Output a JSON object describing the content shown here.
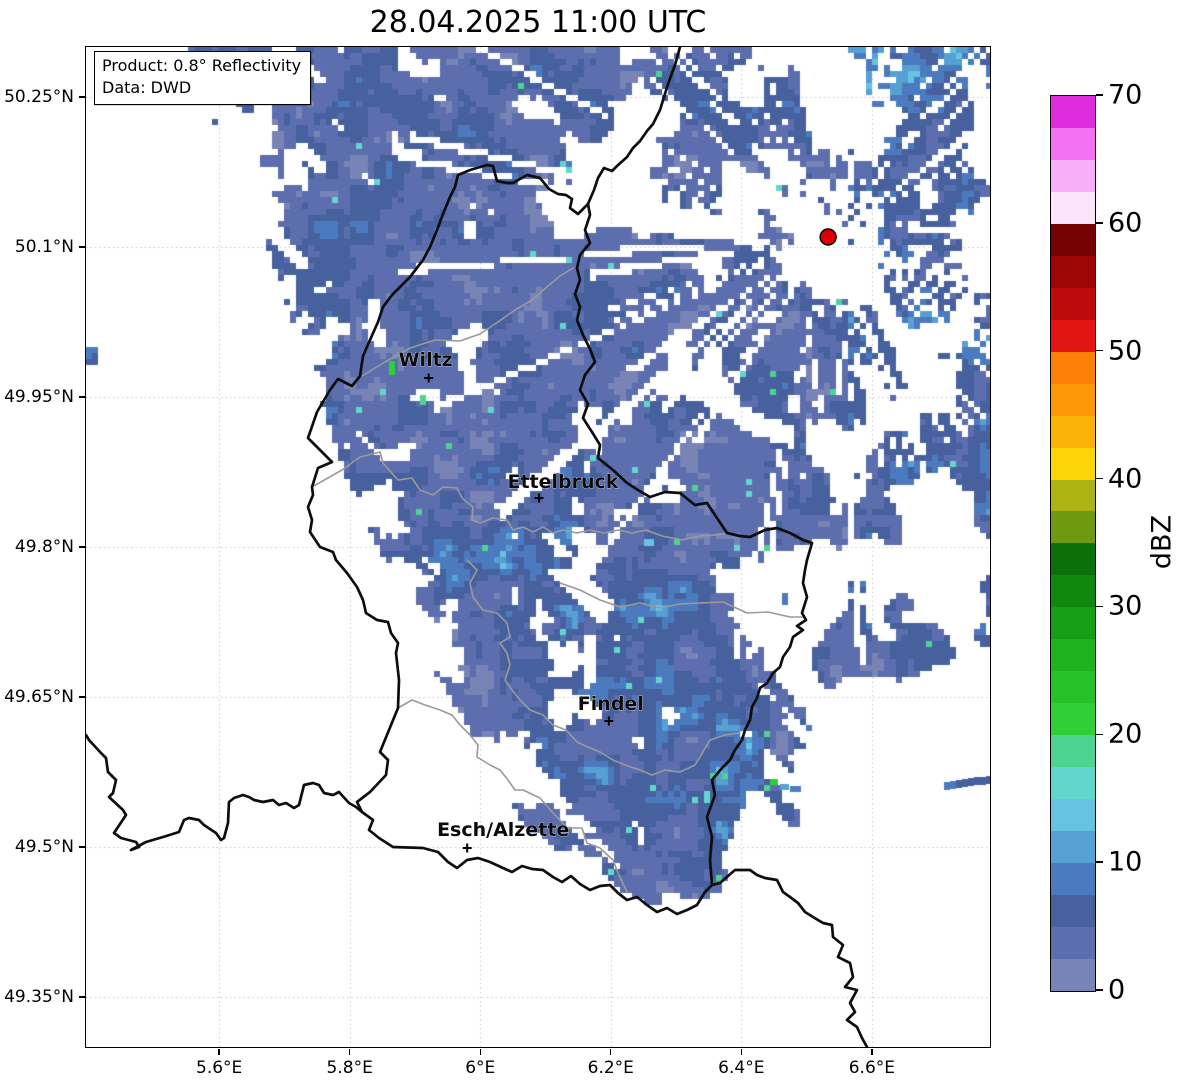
{
  "title": "28.04.2025 11:00 UTC",
  "info_box": {
    "line1": "Product: 0.8° Reflectivity",
    "line2": "Data: DWD"
  },
  "map": {
    "extent": {
      "lon_min": 5.396,
      "lon_max": 6.781,
      "lat_min": 49.3,
      "lat_max": 50.3
    },
    "x_ticks": [
      {
        "value": 5.6,
        "label": "5.6°E"
      },
      {
        "value": 5.8,
        "label": "5.8°E"
      },
      {
        "value": 6.0,
        "label": "6°E"
      },
      {
        "value": 6.2,
        "label": "6.2°E"
      },
      {
        "value": 6.4,
        "label": "6.4°E"
      },
      {
        "value": 6.6,
        "label": "6.6°E"
      }
    ],
    "y_ticks": [
      {
        "value": 50.25,
        "label": "50.25°N"
      },
      {
        "value": 50.1,
        "label": "50.1°N"
      },
      {
        "value": 49.95,
        "label": "49.95°N"
      },
      {
        "value": 49.8,
        "label": "49.8°N"
      },
      {
        "value": 49.65,
        "label": "49.65°N"
      },
      {
        "value": 49.5,
        "label": "49.5°N"
      },
      {
        "value": 49.35,
        "label": "49.35°N"
      }
    ],
    "cities": [
      {
        "name": "Wiltz",
        "lon": 5.921,
        "lat": 49.969
      },
      {
        "name": "Ettelbruck",
        "lon": 6.09,
        "lat": 49.849
      },
      {
        "name": "Findel",
        "lon": 6.197,
        "lat": 49.626
      },
      {
        "name": "Esch/Alzette",
        "lon": 5.98,
        "lat": 49.499
      }
    ],
    "radar_site": {
      "lon": 6.533,
      "lat": 50.11,
      "marker_color": "#dd0000"
    },
    "grid_color": "#c6c6c6",
    "border_colors": {
      "country": "#0d0d0d",
      "district": "#9a9a9a"
    }
  },
  "colorbar": {
    "label": "dBZ",
    "min": 0,
    "max": 70,
    "step": 2.5,
    "tick_values": [
      0,
      10,
      20,
      30,
      40,
      50,
      60,
      70
    ],
    "colors_bottom_to_top": [
      "#7784B5",
      "#5C6EAD",
      "#46619E",
      "#4B7BBE",
      "#57A0D3",
      "#68C2E2",
      "#63D6CB",
      "#4FD391",
      "#30CF38",
      "#27C227",
      "#1EB21E",
      "#169E16",
      "#0F880F",
      "#0A700A",
      "#6E9A12",
      "#ACB414",
      "#FCD408",
      "#FCB108",
      "#FC9808",
      "#FC8108",
      "#E31414",
      "#BE0A0A",
      "#9E0606",
      "#740202",
      "#FBE5FB",
      "#F9AEF9",
      "#F272F2",
      "#DC2CDC"
    ]
  },
  "radar_echo": {
    "description": "Pixelated weather radar reflectivity: a stratiform precipitation band (mostly 0-15 dBZ, slate blue) stretching NW-SE across Luxembourg (Wiltz - Ettelbruck - Findel) and a broad echo field centered on the DWD radar site (red dot) in the northeast, with white radial spoke artifacts; scattered cyan/teal/green pixels up to ~20 dBZ.",
    "visible_dbz_range": [
      0,
      20
    ],
    "seed": 7
  }
}
